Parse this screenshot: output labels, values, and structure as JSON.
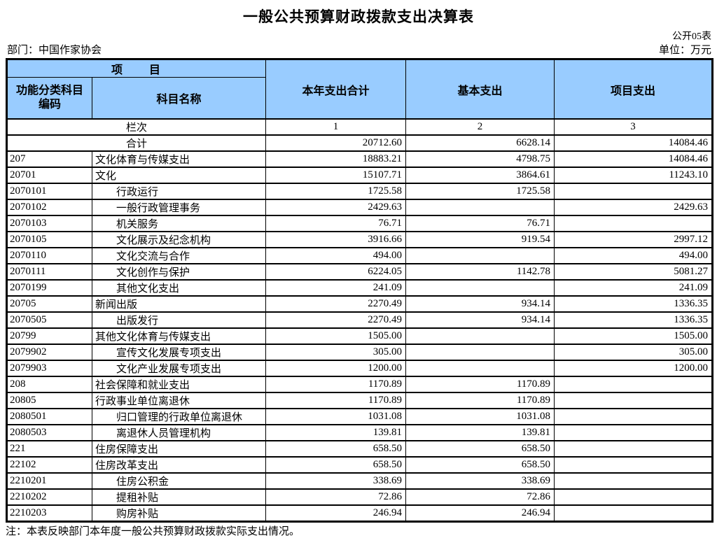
{
  "page": {
    "title": "一般公共预算财政拨款支出决算表",
    "table_code": "公开05表",
    "department_label": "部门：中国作家协会",
    "unit_label": "单位：万元",
    "note": "注：本表反映部门本年度一般公共预算财政拨款实际支出情况。"
  },
  "colors": {
    "header_bg": "#99CCFF",
    "grid_line": "#000000"
  },
  "table": {
    "header": {
      "item_group": "项　　目",
      "code": "功能分类科目编码",
      "name": "科目名称",
      "total": "本年支出合计",
      "basic": "基本支出",
      "project": "项目支出"
    },
    "column_index_row": {
      "label": "栏次",
      "cols": [
        "1",
        "2",
        "3"
      ]
    },
    "total_row": {
      "label": "合计",
      "total": "20712.60",
      "basic": "6628.14",
      "project": "14084.46"
    },
    "rows": [
      {
        "code": "207",
        "name": "文化体育与传媒支出",
        "indent": 0,
        "total": "18883.21",
        "basic": "4798.75",
        "project": "14084.46"
      },
      {
        "code": "20701",
        "name": "文化",
        "indent": 0,
        "total": "15107.71",
        "basic": "3864.61",
        "project": "11243.10"
      },
      {
        "code": "2070101",
        "name": "行政运行",
        "indent": 1,
        "total": "1725.58",
        "basic": "1725.58",
        "project": ""
      },
      {
        "code": "2070102",
        "name": "一般行政管理事务",
        "indent": 1,
        "total": "2429.63",
        "basic": "",
        "project": "2429.63"
      },
      {
        "code": "2070103",
        "name": "机关服务",
        "indent": 1,
        "total": "76.71",
        "basic": "76.71",
        "project": ""
      },
      {
        "code": "2070105",
        "name": "文化展示及纪念机构",
        "indent": 1,
        "total": "3916.66",
        "basic": "919.54",
        "project": "2997.12"
      },
      {
        "code": "2070110",
        "name": "文化交流与合作",
        "indent": 1,
        "total": "494.00",
        "basic": "",
        "project": "494.00"
      },
      {
        "code": "2070111",
        "name": "文化创作与保护",
        "indent": 1,
        "total": "6224.05",
        "basic": "1142.78",
        "project": "5081.27"
      },
      {
        "code": "2070199",
        "name": "其他文化支出",
        "indent": 1,
        "total": "241.09",
        "basic": "",
        "project": "241.09"
      },
      {
        "code": "20705",
        "name": "新闻出版",
        "indent": 0,
        "total": "2270.49",
        "basic": "934.14",
        "project": "1336.35"
      },
      {
        "code": "2070505",
        "name": "出版发行",
        "indent": 1,
        "total": "2270.49",
        "basic": "934.14",
        "project": "1336.35"
      },
      {
        "code": "20799",
        "name": "其他文化体育与传媒支出",
        "indent": 0,
        "total": "1505.00",
        "basic": "",
        "project": "1505.00"
      },
      {
        "code": "2079902",
        "name": "宣传文化发展专项支出",
        "indent": 1,
        "total": "305.00",
        "basic": "",
        "project": "305.00"
      },
      {
        "code": "2079903",
        "name": "文化产业发展专项支出",
        "indent": 1,
        "total": "1200.00",
        "basic": "",
        "project": "1200.00"
      },
      {
        "code": "208",
        "name": "社会保障和就业支出",
        "indent": 0,
        "total": "1170.89",
        "basic": "1170.89",
        "project": ""
      },
      {
        "code": "20805",
        "name": "行政事业单位离退休",
        "indent": 0,
        "total": "1170.89",
        "basic": "1170.89",
        "project": ""
      },
      {
        "code": "2080501",
        "name": "归口管理的行政单位离退休",
        "indent": 1,
        "total": "1031.08",
        "basic": "1031.08",
        "project": ""
      },
      {
        "code": "2080503",
        "name": "离退休人员管理机构",
        "indent": 1,
        "total": "139.81",
        "basic": "139.81",
        "project": ""
      },
      {
        "code": "221",
        "name": "住房保障支出",
        "indent": 0,
        "total": "658.50",
        "basic": "658.50",
        "project": ""
      },
      {
        "code": "22102",
        "name": "住房改革支出",
        "indent": 0,
        "total": "658.50",
        "basic": "658.50",
        "project": ""
      },
      {
        "code": "2210201",
        "name": "住房公积金",
        "indent": 1,
        "total": "338.69",
        "basic": "338.69",
        "project": ""
      },
      {
        "code": "2210202",
        "name": "提租补贴",
        "indent": 1,
        "total": "72.86",
        "basic": "72.86",
        "project": ""
      },
      {
        "code": "2210203",
        "name": "购房补贴",
        "indent": 1,
        "total": "246.94",
        "basic": "246.94",
        "project": ""
      }
    ]
  }
}
